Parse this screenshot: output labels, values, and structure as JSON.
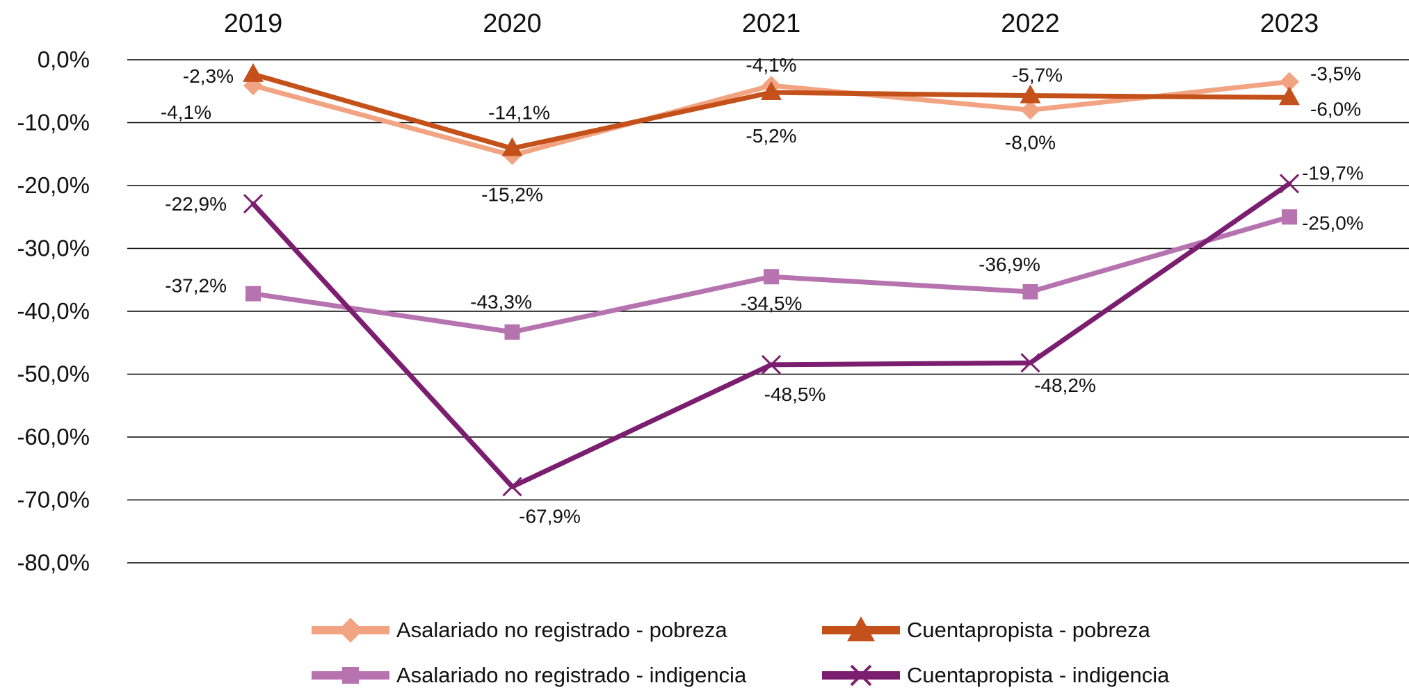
{
  "chart_data": {
    "type": "line",
    "categories": [
      "2019",
      "2020",
      "2021",
      "2022",
      "2023"
    ],
    "ylim": [
      -80,
      0
    ],
    "yticks": [
      0,
      -10,
      -20,
      -30,
      -40,
      -50,
      -60,
      -70,
      -80
    ],
    "ytick_labels": [
      "0,0%",
      "-10,0%",
      "-20,0%",
      "-30,0%",
      "-40,0%",
      "-50,0%",
      "-60,0%",
      "-70,0%",
      "-80,0%"
    ],
    "x_axis_position": "top",
    "grid": true,
    "legend_position": "bottom",
    "series": [
      {
        "name": "Asalariado no registrado - pobreza",
        "color": "#F2A482",
        "marker": "diamond",
        "values": [
          -4.1,
          -15.2,
          -4.1,
          -8.0,
          -3.5
        ],
        "labels": [
          "-4,1%",
          "-15,2%",
          "-4,1%",
          "-8,0%",
          "-3,5%"
        ]
      },
      {
        "name": "Cuentapropista - pobreza",
        "color": "#C4501A",
        "marker": "triangle",
        "values": [
          -2.3,
          -14.1,
          -5.2,
          -5.7,
          -6.0
        ],
        "labels": [
          "-2,3%",
          "-14,1%",
          "-5,2%",
          "-5,7%",
          "-6,0%"
        ]
      },
      {
        "name": "Asalariado no registrado - indigencia",
        "color": "#B673B0",
        "marker": "square",
        "values": [
          -37.2,
          -43.3,
          -34.5,
          -36.9,
          -25.0
        ],
        "labels": [
          "-37,2%",
          "-43,3%",
          "-34,5%",
          "-36,9%",
          "-25,0%"
        ]
      },
      {
        "name": "Cuentapropista - indigencia",
        "color": "#7B1E6F",
        "marker": "x",
        "values": [
          -22.9,
          -67.9,
          -48.5,
          -48.2,
          -19.7
        ],
        "labels": [
          "-22,9%",
          "-67,9%",
          "-48,5%",
          "-48,2%",
          "-19,7%"
        ]
      }
    ]
  }
}
